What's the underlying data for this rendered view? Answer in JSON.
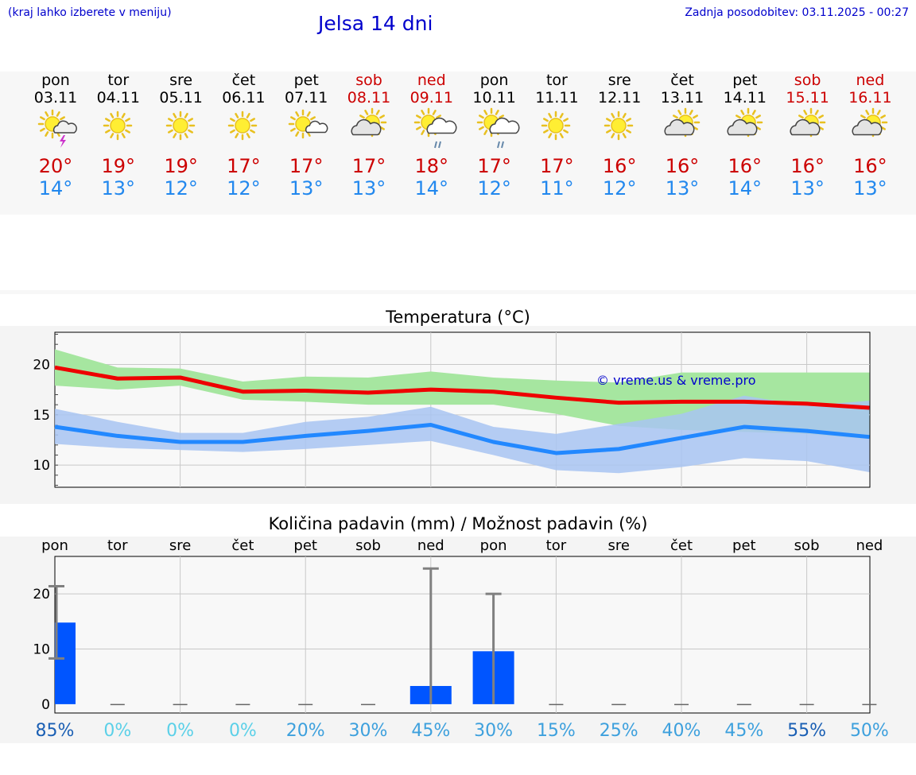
{
  "header": {
    "hint": "(kraj lahko izberete v meniju)",
    "title": "Jelsa 14 dni",
    "updated_label": "Zadnja posodobitev:",
    "updated_value": "03.11.2025 - 00:27"
  },
  "forecast": [
    {
      "day": "pon",
      "date": "03.11",
      "weekend": false,
      "icon": "sun-thunderstorm-icon",
      "tmax": "20°",
      "tmin": "14°"
    },
    {
      "day": "tor",
      "date": "04.11",
      "weekend": false,
      "icon": "sun-icon",
      "tmax": "19°",
      "tmin": "13°"
    },
    {
      "day": "sre",
      "date": "05.11",
      "weekend": false,
      "icon": "sun-icon",
      "tmax": "19°",
      "tmin": "12°"
    },
    {
      "day": "čet",
      "date": "06.11",
      "weekend": false,
      "icon": "sun-icon",
      "tmax": "17°",
      "tmin": "12°"
    },
    {
      "day": "pet",
      "date": "07.11",
      "weekend": false,
      "icon": "sun-small-cloud-icon",
      "tmax": "17°",
      "tmin": "13°"
    },
    {
      "day": "sob",
      "date": "08.11",
      "weekend": true,
      "icon": "partly-cloudy-icon",
      "tmax": "17°",
      "tmin": "13°"
    },
    {
      "day": "ned",
      "date": "09.11",
      "weekend": true,
      "icon": "sun-cloud-rain-icon",
      "tmax": "18°",
      "tmin": "14°"
    },
    {
      "day": "pon",
      "date": "10.11",
      "weekend": false,
      "icon": "sun-cloud-rain-icon",
      "tmax": "17°",
      "tmin": "12°"
    },
    {
      "day": "tor",
      "date": "11.11",
      "weekend": false,
      "icon": "sun-icon",
      "tmax": "17°",
      "tmin": "11°"
    },
    {
      "day": "sre",
      "date": "12.11",
      "weekend": false,
      "icon": "sun-icon",
      "tmax": "16°",
      "tmin": "12°"
    },
    {
      "day": "čet",
      "date": "13.11",
      "weekend": false,
      "icon": "partly-cloudy-icon",
      "tmax": "16°",
      "tmin": "13°"
    },
    {
      "day": "pet",
      "date": "14.11",
      "weekend": false,
      "icon": "partly-cloudy-icon",
      "tmax": "16°",
      "tmin": "14°"
    },
    {
      "day": "sob",
      "date": "15.11",
      "weekend": true,
      "icon": "partly-cloudy-icon",
      "tmax": "16°",
      "tmin": "13°"
    },
    {
      "day": "ned",
      "date": "16.11",
      "weekend": true,
      "icon": "partly-cloudy-icon",
      "tmax": "16°",
      "tmin": "13°"
    }
  ],
  "colors": {
    "max_line": "#ee0000",
    "min_line": "#2288ff",
    "max_band": "#a6e6a0",
    "min_band": "#a8c4f2",
    "rain_bar": "#0055ff",
    "error_bar": "#808080",
    "grid": "#c8c8c8",
    "hint_blue": "#0000cc"
  },
  "chart_data": [
    {
      "type": "line",
      "title": "Temperatura (°C)",
      "watermark": "© vreme.us & vreme.pro",
      "x": [
        0,
        1,
        2,
        3,
        4,
        5,
        6,
        7,
        8,
        9,
        10,
        11,
        12,
        13
      ],
      "ylim": [
        7.8,
        23.2
      ],
      "yticks": [
        10,
        15,
        20
      ],
      "series": [
        {
          "name": "max",
          "values": [
            19.7,
            18.6,
            18.7,
            17.3,
            17.4,
            17.2,
            17.5,
            17.3,
            16.7,
            16.2,
            16.3,
            16.3,
            16.1,
            15.7
          ],
          "band_low": [
            17.9,
            17.5,
            17.9,
            16.5,
            16.3,
            16.0,
            16.0,
            16.0,
            15.1,
            13.9,
            13.5,
            13.3,
            13.1,
            12.6
          ],
          "band_high": [
            21.5,
            19.7,
            19.6,
            18.3,
            18.8,
            18.7,
            19.3,
            18.7,
            18.4,
            18.2,
            19.2,
            19.2,
            19.2,
            19.2
          ]
        },
        {
          "name": "min",
          "values": [
            13.8,
            12.9,
            12.3,
            12.3,
            12.9,
            13.4,
            14.0,
            12.3,
            11.2,
            11.6,
            12.7,
            13.8,
            13.4,
            12.8
          ],
          "band_low": [
            12.1,
            11.7,
            11.5,
            11.3,
            11.6,
            12.0,
            12.4,
            11.0,
            9.5,
            9.2,
            9.8,
            10.7,
            10.4,
            9.3
          ],
          "band_high": [
            15.6,
            14.3,
            13.2,
            13.2,
            14.3,
            14.8,
            15.8,
            13.8,
            13.1,
            14.1,
            15.1,
            16.9,
            15.9,
            16.4
          ]
        }
      ]
    },
    {
      "type": "bar",
      "title": "Količina padavin (mm) / Možnost padavin (%)",
      "categories": [
        "pon",
        "tor",
        "sre",
        "čet",
        "pet",
        "sob",
        "ned",
        "pon",
        "tor",
        "sre",
        "čet",
        "pet",
        "sob",
        "ned"
      ],
      "values": [
        14.8,
        0,
        0,
        0,
        0,
        0,
        3.3,
        9.6,
        0,
        0,
        0,
        0,
        0,
        0
      ],
      "error_low": [
        8.3,
        0,
        0,
        0,
        0,
        0,
        0,
        0,
        0,
        0,
        0,
        0,
        0,
        0
      ],
      "error_high": [
        21.4,
        0,
        0,
        0,
        0,
        0,
        24.6,
        20.0,
        0,
        0,
        0,
        0,
        0,
        0
      ],
      "ylim": [
        -1.6,
        26.8
      ],
      "yticks": [
        0,
        10,
        20
      ],
      "probabilities": [
        "85%",
        "0%",
        "0%",
        "0%",
        "20%",
        "30%",
        "45%",
        "30%",
        "15%",
        "25%",
        "40%",
        "45%",
        "55%",
        "50%"
      ],
      "prob_colors": [
        "#1a5fb4",
        "#5bd0e8",
        "#5bd0e8",
        "#5bd0e8",
        "#3da0dd",
        "#3da0dd",
        "#3da0dd",
        "#3da0dd",
        "#3da0dd",
        "#3da0dd",
        "#3da0dd",
        "#3da0dd",
        "#1a5fb4",
        "#3da0dd"
      ]
    }
  ]
}
